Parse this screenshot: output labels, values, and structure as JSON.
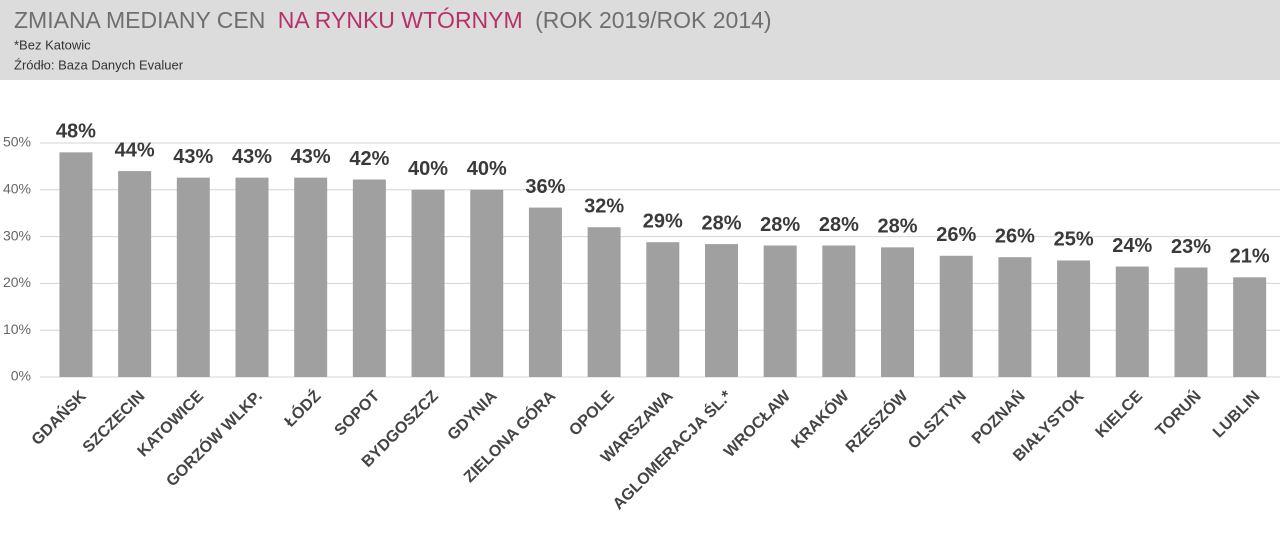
{
  "chart_data": {
    "type": "bar",
    "title": [
      "ZMIANA MEDIANY CEN",
      "NA RYNKU WTÓRNYM",
      "(ROK 2019/ROK 2014)"
    ],
    "notes": [
      "*Bez Katowic",
      "Źródło: Baza Danych Evaluer"
    ],
    "categories": [
      "GDAŃSK",
      "SZCZECIN",
      "KATOWICE",
      "GORZÓW WLKP.",
      "ŁÓDŹ",
      "SOPOT",
      "BYDGOSZCZ",
      "GDYNIA",
      "ZIELONA GÓRA",
      "OPOLE",
      "WARSZAWA",
      "AGLOMERACJA ŚL.*",
      "WROCŁAW",
      "KRAKÓW",
      "RZESZÓW",
      "OLSZTYN",
      "POZNAŃ",
      "BIAŁYSTOK",
      "KIELCE",
      "TORUŃ",
      "LUBLIN"
    ],
    "values": [
      48,
      44,
      42.6,
      42.6,
      42.6,
      42.2,
      40,
      40,
      36.2,
      32,
      28.8,
      28.4,
      28.1,
      28.1,
      27.7,
      25.9,
      25.6,
      24.9,
      23.6,
      23.4,
      21.3
    ],
    "value_labels": [
      "48%",
      "44%",
      "43%",
      "43%",
      "43%",
      "42%",
      "40%",
      "40%",
      "36%",
      "32%",
      "29%",
      "28%",
      "28%",
      "28%",
      "28%",
      "26%",
      "26%",
      "25%",
      "24%",
      "23%",
      "21%"
    ],
    "color": "#a0a0a0",
    "title_colors": [
      "#6f6f6f",
      "#b5316a",
      "#6f6f6f"
    ],
    "ylim": [
      0,
      50
    ],
    "yticks": [
      {
        "value": 0,
        "label": "0%"
      },
      {
        "value": 10,
        "label": "10%"
      },
      {
        "value": 20,
        "label": "20%"
      },
      {
        "value": 30,
        "label": "30%"
      },
      {
        "value": 40,
        "label": "40%"
      },
      {
        "value": 50,
        "label": "50%"
      }
    ],
    "grid": true
  }
}
